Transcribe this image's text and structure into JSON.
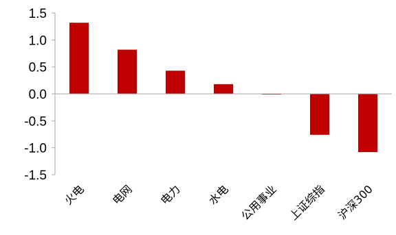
{
  "chart_data": {
    "type": "bar",
    "title": "",
    "xlabel": "",
    "ylabel": "",
    "categories": [
      "火电",
      "电网",
      "电力",
      "水电",
      "公用事业",
      "上证综指",
      "沪深300"
    ],
    "values": [
      1.32,
      0.82,
      0.43,
      0.18,
      -0.01,
      -0.76,
      -1.08
    ],
    "ylim": [
      -1.5,
      1.5
    ],
    "yticks": [
      1.5,
      1.0,
      0.5,
      0.0,
      -0.5,
      -1.0,
      -1.5
    ],
    "ytick_labels": [
      "1.5",
      "1.0",
      "0.5",
      "0.0",
      "-0.5",
      "-1.0",
      "-1.5"
    ],
    "bar_color": "#C00000",
    "axis_color": "#A6A6A6",
    "grid": false,
    "legend": "none"
  }
}
